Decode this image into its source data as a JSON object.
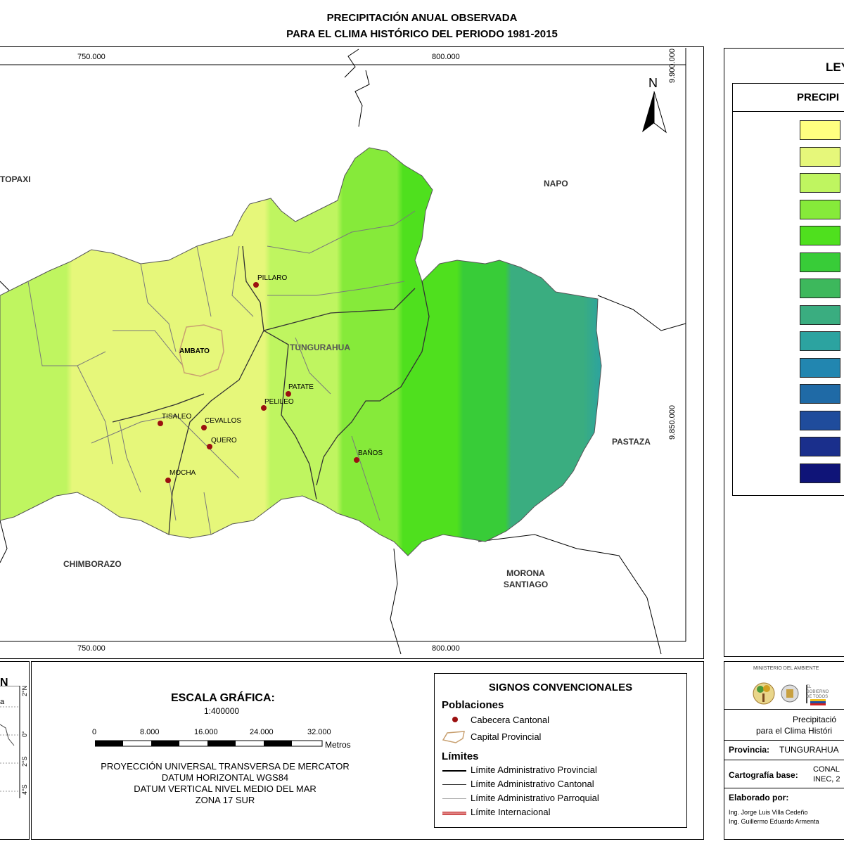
{
  "title": {
    "line1": "PRECIPITACIÓN ANUAL OBSERVADA",
    "line2": "PARA EL CLIMA HISTÓRICO DEL PERIODO 1981-2015"
  },
  "grid": {
    "x_top": [
      "750.000",
      "800.000"
    ],
    "x_bottom": [
      "750.000",
      "800.000"
    ],
    "y_right": [
      "9.900.000",
      "9.850.000"
    ]
  },
  "north_arrow": "N",
  "neighbors": {
    "cotopaxi": "TOPAXI",
    "napo": "NAPO",
    "chimborazo": "CHIMBORAZO",
    "pastaza": "PASTAZA",
    "morona": "MORONA",
    "santiago": "SANTIAGO"
  },
  "province_label": "TUNGURAHUA",
  "capital_label": "AMBATO",
  "towns": [
    "PILLARO",
    "PATATE",
    "PELILEO",
    "TISALEO",
    "CEVALLOS",
    "QUERO",
    "BAÑOS",
    "MOCHA"
  ],
  "legend": {
    "title": "LEY",
    "subtitle": "PRECIPI",
    "colors": [
      "#ffff80",
      "#e6f77a",
      "#bff560",
      "#86ea3a",
      "#4fe01e",
      "#38cc38",
      "#3db85c",
      "#3aad80",
      "#2ca3a0",
      "#2286b0",
      "#1f6aa6",
      "#1f4c9c",
      "#1a2f8c",
      "#0f1478"
    ]
  },
  "scale": {
    "title": "ESCALA GRÁFICA:",
    "ratio": "1:400000",
    "ticks": [
      "0",
      "8.000",
      "16.000",
      "24.000",
      "32.000"
    ],
    "unit": "Metros"
  },
  "projection": [
    "PROYECCIÓN UNIVERSAL TRANSVERSA DE MERCATOR",
    "DATUM HORIZONTAL WGS84",
    "DATUM VERTICAL NIVEL MEDIO DEL MAR",
    "ZONA 17 SUR"
  ],
  "signs": {
    "title": "SIGNOS CONVENCIONALES",
    "poblaciones": "Poblaciones",
    "cabecera": "Cabecera Cantonal",
    "capital": "Capital Provincial",
    "limites": "Límites",
    "provincial": "Límite Administrativo Provincial",
    "cantonal": "Límite Administrativo Cantonal",
    "parroquial": "Límite Administrativo Parroquial",
    "internacional": "Límite Internacional"
  },
  "location_map": {
    "title": "N",
    "lat_labels": [
      "2°N",
      "0°",
      "2°S",
      "4°S"
    ],
    "side_label": "a"
  },
  "info": {
    "ministry": "MINISTERIO DEL AMBIENTE",
    "gob1": "EL",
    "gob2": "GOBIERNO",
    "gob3": "DE TODOS",
    "desc1": "Precipitació",
    "desc2": "para el Clima Históri",
    "provincia_label": "Provincia:",
    "provincia_value": "TUNGURAHUA",
    "carto_label": "Cartografía base:",
    "carto_value1": "CONAL",
    "carto_value2": "INEC, 2",
    "elaborado": "Elaborado por:",
    "author1": "Ing. Jorge Luis Villa Cedeño",
    "author2": "Ing. Guillermo Eduardo Armenta"
  }
}
